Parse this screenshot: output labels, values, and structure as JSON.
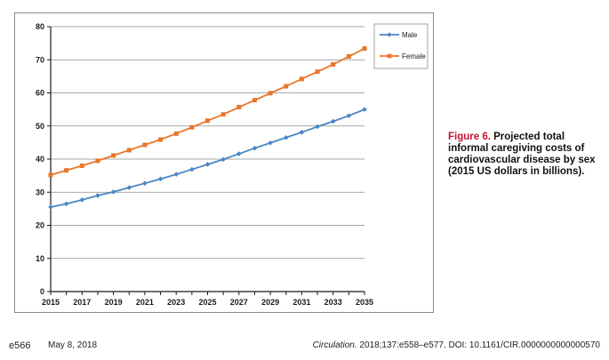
{
  "chart_data": {
    "type": "line",
    "title": "",
    "xlabel": "",
    "ylabel": "",
    "x": [
      2015,
      2016,
      2017,
      2018,
      2019,
      2020,
      2021,
      2022,
      2023,
      2024,
      2025,
      2026,
      2027,
      2028,
      2029,
      2030,
      2031,
      2032,
      2033,
      2034,
      2035
    ],
    "x_tick_labels": [
      "2015",
      "2017",
      "2019",
      "2021",
      "2023",
      "2025",
      "2027",
      "2029",
      "2031",
      "2033",
      "2035"
    ],
    "y_tick_labels": [
      "0",
      "10",
      "20",
      "30",
      "40",
      "50",
      "60",
      "70",
      "80"
    ],
    "ylim": [
      0,
      80
    ],
    "xlim": [
      2015,
      2035
    ],
    "grid": "horizontal",
    "legend_position": "top-right",
    "series": [
      {
        "name": "Male",
        "color": "#4a86c4",
        "marker": "diamond",
        "values": [
          25.5,
          26.5,
          27.7,
          29.0,
          30.1,
          31.4,
          32.7,
          34.0,
          35.4,
          36.9,
          38.4,
          39.9,
          41.6,
          43.3,
          44.9,
          46.5,
          48.1,
          49.8,
          51.4,
          53.1,
          55.0
        ]
      },
      {
        "name": "Female",
        "color": "#e8762b",
        "marker": "square",
        "values": [
          35.2,
          36.6,
          38.0,
          39.5,
          41.1,
          42.7,
          44.3,
          45.9,
          47.7,
          49.6,
          51.6,
          53.5,
          55.7,
          57.8,
          59.9,
          62.0,
          64.2,
          66.4,
          68.6,
          71.0,
          73.4
        ]
      }
    ]
  },
  "caption": {
    "label": "Figure 6.",
    "text": "Projected total informal caregiving costs of cardiovascular disease by sex (2015 US dollars in billions)."
  },
  "footer": {
    "page": "e566",
    "date": "May 8, 2018",
    "journal": "Circulation.",
    "citation": "2018;137:e558–e577. DOI: 10.1161/CIR.0000000000000570"
  }
}
